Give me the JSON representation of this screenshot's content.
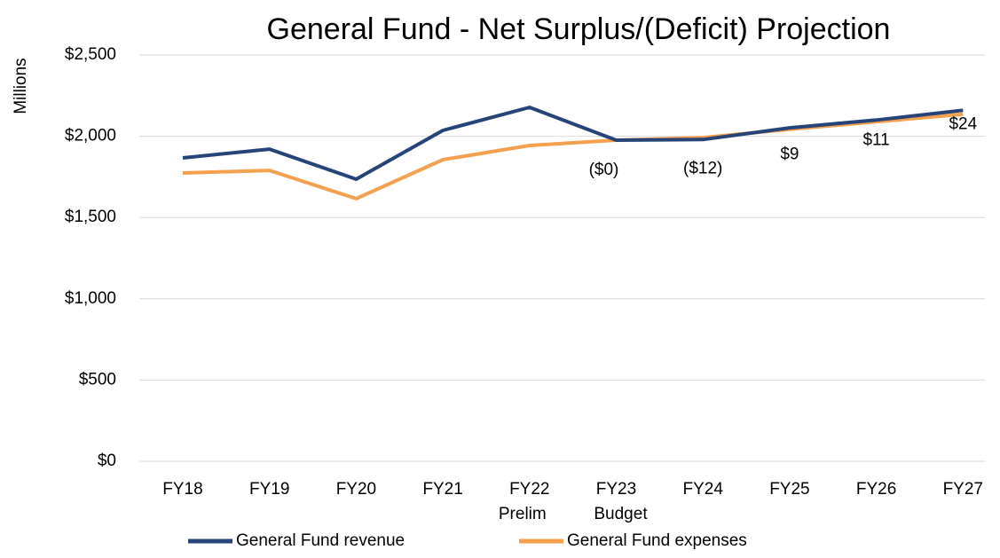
{
  "chart_data": {
    "type": "line",
    "title": "General Fund - Net Surplus/(Deficit) Projection",
    "y_label": "Millions",
    "categories": [
      "FY18",
      "FY19",
      "FY20",
      "FY21",
      "FY22",
      "FY23",
      "FY24",
      "FY25",
      "FY26",
      "FY27"
    ],
    "category_sublabels": [
      null,
      null,
      null,
      null,
      "Prelim",
      "Budget",
      null,
      null,
      null,
      null
    ],
    "series": [
      {
        "name": "General Fund revenue",
        "color": "#264478",
        "values": [
          1867,
          1921,
          1736,
          2036,
          2178,
          1976,
          1980,
          2052,
          2100,
          2160
        ]
      },
      {
        "name": "General Fund expenses",
        "color": "#f4a04e",
        "values": [
          1774,
          1790,
          1616,
          1856,
          1943,
          1976,
          1992,
          2043,
          2089,
          2136
        ]
      }
    ],
    "net_labels": [
      null,
      null,
      null,
      null,
      null,
      "($0)",
      "($12)",
      "$9",
      "$11",
      "$24"
    ],
    "ylim": [
      0,
      2500
    ],
    "yticks": [
      {
        "value": 0,
        "label": "$0"
      },
      {
        "value": 500,
        "label": "$500"
      },
      {
        "value": 1000,
        "label": "$1,000"
      },
      {
        "value": 1500,
        "label": "$1,500"
      },
      {
        "value": 2000,
        "label": "$2,000"
      },
      {
        "value": 2500,
        "label": "$2,500"
      }
    ],
    "grid": true,
    "legend": "bottom"
  }
}
